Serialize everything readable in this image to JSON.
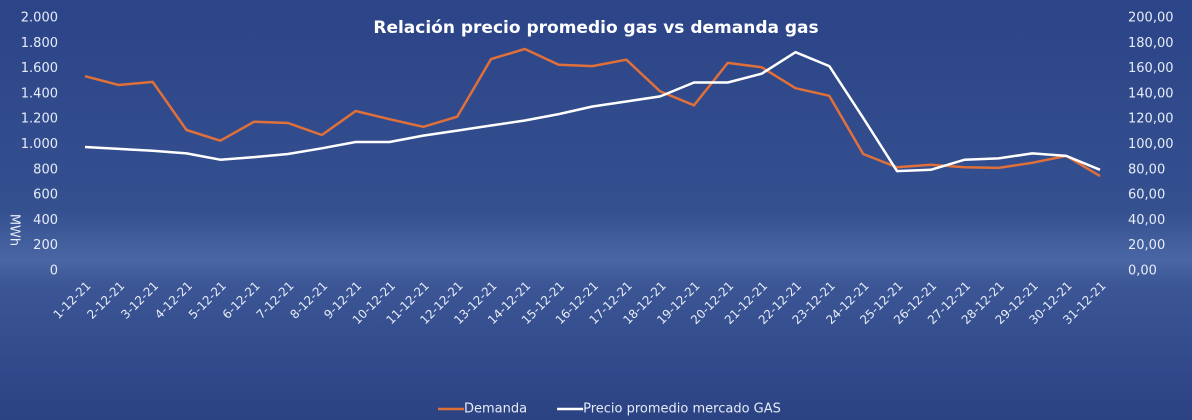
{
  "chart_data": {
    "type": "line",
    "title": "Relación precio promedio gas vs demanda gas",
    "ylabel": "MWh",
    "categories": [
      "1-12-21",
      "2-12-21",
      "3-12-21",
      "4-12-21",
      "5-12-21",
      "6-12-21",
      "7-12-21",
      "8-12-21",
      "9-12-21",
      "10-12-21",
      "11-12-21",
      "12-12-21",
      "13-12-21",
      "14-12-21",
      "15-12-21",
      "16-12-21",
      "17-12-21",
      "18-12-21",
      "19-12-21",
      "20-12-21",
      "21-12-21",
      "22-12-21",
      "23-12-21",
      "24-12-21",
      "25-12-21",
      "26-12-21",
      "27-12-21",
      "28-12-21",
      "29-12-21",
      "30-12-21",
      "31-12-21"
    ],
    "series": [
      {
        "name": "Demanda",
        "color": "#e0703a",
        "values": [
          1540,
          1470,
          1495,
          1115,
          1030,
          1180,
          1170,
          1075,
          1265,
          1200,
          1140,
          1220,
          1675,
          1755,
          1630,
          1620,
          1670,
          1420,
          1310,
          1645,
          1610,
          1445,
          1385,
          925,
          820,
          840,
          820,
          815,
          855,
          910,
          750
        ]
      },
      {
        "name": "Precio promedio mercado GAS",
        "color": "#ffffff",
        "axis": "y2",
        "values": [
          98,
          96.5,
          95,
          93,
          88,
          90,
          92.5,
          97,
          102,
          102,
          107,
          111,
          115,
          119,
          124,
          130,
          134,
          138,
          149,
          149,
          156,
          173,
          162,
          121,
          79,
          80,
          88,
          89,
          93,
          91,
          80
        ]
      }
    ],
    "ylim": [
      0,
      2000
    ],
    "yticks": [
      {
        "value": 0,
        "label": "0"
      },
      {
        "value": 200,
        "label": "200"
      },
      {
        "value": 400,
        "label": "400"
      },
      {
        "value": 600,
        "label": "600"
      },
      {
        "value": 800,
        "label": "800"
      },
      {
        "value": 1000,
        "label": "1.000"
      },
      {
        "value": 1200,
        "label": "1.200"
      },
      {
        "value": 1400,
        "label": "1.400"
      },
      {
        "value": 1600,
        "label": "1.600"
      },
      {
        "value": 1800,
        "label": "1.800"
      },
      {
        "value": 2000,
        "label": "2.000"
      }
    ],
    "y2lim": [
      0,
      200
    ],
    "y2ticks": [
      {
        "value": 0,
        "label": "0,00"
      },
      {
        "value": 20,
        "label": "20,00"
      },
      {
        "value": 40,
        "label": "40,00"
      },
      {
        "value": 60,
        "label": "60,00"
      },
      {
        "value": 80,
        "label": "80,00"
      },
      {
        "value": 100,
        "label": "100,00"
      },
      {
        "value": 120,
        "label": "120,00"
      },
      {
        "value": 140,
        "label": "140,00"
      },
      {
        "value": 160,
        "label": "160,00"
      },
      {
        "value": 180,
        "label": "180,00"
      },
      {
        "value": 200,
        "label": "200,00"
      }
    ],
    "legend": "bottom"
  }
}
